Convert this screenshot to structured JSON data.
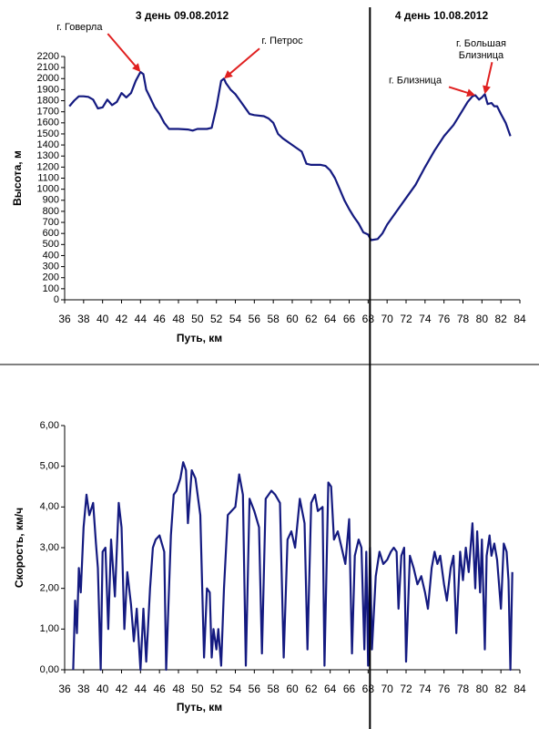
{
  "chart_data": [
    {
      "type": "line",
      "day_labels": [
        "3 день 09.08.2012",
        "4 день 10.08.2012"
      ],
      "xlabel": "Путь, км",
      "ylabel": "Высота, м",
      "color": "#141a80",
      "vline": 68,
      "xlim": [
        36,
        84
      ],
      "xticks": [
        36,
        38,
        40,
        42,
        44,
        46,
        48,
        50,
        52,
        54,
        56,
        58,
        60,
        62,
        64,
        66,
        68,
        70,
        72,
        74,
        76,
        78,
        80,
        82,
        84
      ],
      "ylim": [
        0,
        2200
      ],
      "yticks": [
        0,
        100,
        200,
        300,
        400,
        500,
        600,
        700,
        800,
        900,
        1000,
        1100,
        1200,
        1300,
        1400,
        1500,
        1600,
        1700,
        1800,
        1900,
        2000,
        2100,
        2200
      ],
      "x": [
        36.5,
        37,
        37.5,
        38,
        38.5,
        39,
        39.5,
        40,
        40.5,
        41,
        41.5,
        42,
        42.5,
        43,
        43.5,
        44,
        44.3,
        44.6,
        45,
        45.5,
        46,
        46.5,
        47,
        48,
        49,
        49.5,
        50,
        51,
        51.5,
        52,
        52.5,
        52.8,
        53,
        53.5,
        54,
        54.5,
        55,
        55.5,
        56,
        57,
        57.5,
        58,
        58.5,
        59,
        60,
        61,
        61.5,
        62,
        63,
        63.5,
        64,
        64.5,
        65,
        65.5,
        66,
        66.5,
        67,
        67.5,
        68,
        68.3,
        69,
        69.5,
        70,
        71,
        72,
        73,
        74,
        75,
        76,
        77,
        77.5,
        78,
        78.5,
        79,
        79.3,
        79.7,
        80,
        80.3,
        80.6,
        81,
        81.3,
        81.6,
        82,
        82.5,
        83
      ],
      "values": [
        1750,
        1800,
        1840,
        1840,
        1835,
        1810,
        1730,
        1740,
        1810,
        1760,
        1790,
        1870,
        1830,
        1870,
        1980,
        2060,
        2040,
        1900,
        1830,
        1740,
        1680,
        1600,
        1545,
        1545,
        1540,
        1530,
        1545,
        1545,
        1555,
        1740,
        1980,
        2000,
        1960,
        1900,
        1860,
        1800,
        1740,
        1680,
        1670,
        1660,
        1640,
        1600,
        1500,
        1460,
        1400,
        1340,
        1230,
        1220,
        1220,
        1210,
        1170,
        1100,
        1000,
        900,
        820,
        750,
        690,
        610,
        590,
        540,
        550,
        600,
        680,
        800,
        920,
        1040,
        1200,
        1350,
        1480,
        1580,
        1650,
        1720,
        1790,
        1840,
        1850,
        1810,
        1830,
        1860,
        1770,
        1780,
        1750,
        1750,
        1680,
        1600,
        1480
      ],
      "annotations": [
        {
          "lines": [
            "г. Говерла"
          ],
          "x": 44,
          "y": 2060
        },
        {
          "lines": [
            "г. Петрос"
          ],
          "x": 52.8,
          "y": 2000
        },
        {
          "lines": [
            "г. Близница"
          ],
          "x": 79.3,
          "y": 1850
        },
        {
          "lines": [
            "г. Большая",
            "Близница"
          ],
          "x": 80.3,
          "y": 1860
        }
      ]
    },
    {
      "type": "line",
      "xlabel": "Путь, км",
      "ylabel": "Скорость, км/ч",
      "color": "#141a80",
      "vline": 68,
      "xlim": [
        36,
        84
      ],
      "xticks": [
        36,
        38,
        40,
        42,
        44,
        46,
        48,
        50,
        52,
        54,
        56,
        58,
        60,
        62,
        64,
        66,
        68,
        70,
        72,
        74,
        76,
        78,
        80,
        82,
        84
      ],
      "ylim": [
        0,
        6
      ],
      "yticks": [
        {
          "value": 0,
          "label": "0,00"
        },
        {
          "value": 1,
          "label": "1,00"
        },
        {
          "value": 2,
          "label": "2,00"
        },
        {
          "value": 3,
          "label": "3,00"
        },
        {
          "value": 4,
          "label": "4,00"
        },
        {
          "value": 5,
          "label": "5,00"
        },
        {
          "value": 6,
          "label": "6,00"
        }
      ],
      "x": [
        36.9,
        37.1,
        37.3,
        37.5,
        37.7,
        38,
        38.3,
        38.6,
        39,
        39.3,
        39.5,
        39.8,
        40,
        40.3,
        40.6,
        40.9,
        41.3,
        41.7,
        42,
        42.3,
        42.6,
        43,
        43.3,
        43.6,
        44,
        44.3,
        44.6,
        45,
        45.3,
        45.6,
        46,
        46.5,
        46.7,
        47.2,
        47.5,
        47.8,
        48.2,
        48.5,
        48.8,
        49,
        49.4,
        49.8,
        50.3,
        50.7,
        51,
        51.3,
        51.5,
        51.7,
        52,
        52.2,
        52.5,
        52.8,
        53.2,
        53.6,
        54,
        54.4,
        54.8,
        55.1,
        55.5,
        56,
        56.5,
        56.8,
        57.2,
        57.8,
        58.2,
        58.7,
        59.1,
        59.5,
        59.9,
        60.3,
        60.8,
        61.3,
        61.6,
        62,
        62.4,
        62.7,
        63.2,
        63.4,
        63.8,
        64.1,
        64.4,
        64.8,
        65.2,
        65.6,
        66,
        66.3,
        66.6,
        67,
        67.3,
        67.6,
        67.8,
        68,
        68.2,
        68.4,
        68.8,
        69.2,
        69.6,
        70,
        70.4,
        70.7,
        71,
        71.2,
        71.5,
        71.8,
        72,
        72.4,
        72.8,
        73.2,
        73.6,
        74,
        74.3,
        74.7,
        75,
        75.3,
        75.6,
        76,
        76.3,
        76.7,
        77,
        77.3,
        77.7,
        78,
        78.3,
        78.6,
        79,
        79.3,
        79.5,
        79.8,
        80,
        80.3,
        80.5,
        80.8,
        81,
        81.3,
        81.6,
        82,
        82.3,
        82.6,
        82.8,
        83,
        83.2
      ],
      "values": [
        0,
        1.7,
        0.9,
        2.5,
        1.9,
        3.5,
        4.3,
        3.8,
        4.1,
        3.1,
        2.5,
        0,
        2.9,
        3.0,
        1.0,
        3.2,
        1.8,
        4.1,
        3.5,
        1.0,
        2.4,
        1.6,
        0.7,
        1.5,
        0,
        1.5,
        0.2,
        2.0,
        3.0,
        3.2,
        3.3,
        2.9,
        0,
        3.3,
        4.3,
        4.4,
        4.7,
        5.1,
        4.9,
        3.6,
        4.9,
        4.7,
        3.8,
        0.3,
        2.0,
        1.9,
        0.3,
        1.0,
        0.5,
        1.0,
        0.1,
        2.0,
        3.8,
        3.9,
        4.0,
        4.8,
        4.3,
        0.1,
        4.2,
        3.9,
        3.5,
        0.4,
        4.2,
        4.4,
        4.3,
        4.1,
        0.3,
        3.2,
        3.4,
        3.0,
        4.2,
        3.6,
        0.5,
        4.1,
        4.3,
        3.9,
        4.0,
        0.1,
        4.6,
        4.5,
        3.2,
        3.4,
        3.0,
        2.6,
        3.7,
        0.4,
        2.8,
        3.2,
        3.0,
        0.5,
        2.9,
        0.1,
        3.0,
        0.5,
        2.3,
        2.9,
        2.6,
        2.7,
        2.9,
        3.0,
        2.9,
        1.5,
        2.8,
        3.0,
        0.2,
        2.8,
        2.5,
        2.1,
        2.3,
        1.9,
        1.5,
        2.5,
        2.9,
        2.6,
        2.8,
        2.1,
        1.7,
        2.5,
        2.8,
        0.9,
        2.9,
        2.2,
        3.0,
        2.4,
        3.6,
        2.0,
        3.4,
        1.9,
        3.2,
        0.5,
        2.8,
        3.3,
        2.8,
        3.1,
        2.7,
        1.5,
        3.1,
        2.9,
        2.2,
        0,
        2.4
      ]
    }
  ]
}
